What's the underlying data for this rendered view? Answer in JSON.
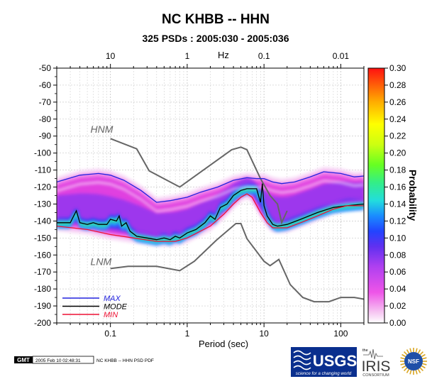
{
  "chart_data": {
    "type": "heatmap",
    "title": "NC KHBB -- HHN",
    "subtitle": "325 PSDs : 2005:030 - 2005:036",
    "xlabel": "Period (sec)",
    "top_axis_label": "Hz",
    "colorbar_label": "Probability",
    "x_scale": "log",
    "xlim": [
      0.02,
      200
    ],
    "ylim": [
      -200,
      -50
    ],
    "x_ticks": [
      {
        "value": 0.1,
        "label": "0.1"
      },
      {
        "value": 1,
        "label": "1"
      },
      {
        "value": 10,
        "label": "10"
      },
      {
        "value": 100,
        "label": "100"
      }
    ],
    "top_ticks": [
      {
        "value": 0.1,
        "label": "10"
      },
      {
        "value": 1,
        "label": "1"
      },
      {
        "value": 10,
        "label": "0.1"
      },
      {
        "value": 100,
        "label": "0.01"
      }
    ],
    "y_ticks": [
      {
        "value": -50,
        "label": "-50"
      },
      {
        "value": -60,
        "label": "-60"
      },
      {
        "value": -70,
        "label": "-70"
      },
      {
        "value": -80,
        "label": "-80"
      },
      {
        "value": -90,
        "label": "-90"
      },
      {
        "value": -100,
        "label": "-100"
      },
      {
        "value": -110,
        "label": "-110"
      },
      {
        "value": -120,
        "label": "-120"
      },
      {
        "value": -130,
        "label": "-130"
      },
      {
        "value": -140,
        "label": "-140"
      },
      {
        "value": -150,
        "label": "-150"
      },
      {
        "value": -160,
        "label": "-160"
      },
      {
        "value": -170,
        "label": "-170"
      },
      {
        "value": -180,
        "label": "-180"
      },
      {
        "value": -190,
        "label": "-190"
      },
      {
        "value": -200,
        "label": "-200"
      }
    ],
    "colorbar_ticks": [
      {
        "value": 0.0,
        "label": "0.00"
      },
      {
        "value": 0.02,
        "label": "0.02"
      },
      {
        "value": 0.04,
        "label": "0.04"
      },
      {
        "value": 0.06,
        "label": "0.06"
      },
      {
        "value": 0.08,
        "label": "0.08"
      },
      {
        "value": 0.1,
        "label": "0.10"
      },
      {
        "value": 0.12,
        "label": "0.12"
      },
      {
        "value": 0.14,
        "label": "0.14"
      },
      {
        "value": 0.16,
        "label": "0.16"
      },
      {
        "value": 0.18,
        "label": "0.18"
      },
      {
        "value": 0.2,
        "label": "0.20"
      },
      {
        "value": 0.22,
        "label": "0.22"
      },
      {
        "value": 0.24,
        "label": "0.24"
      },
      {
        "value": 0.26,
        "label": "0.26"
      },
      {
        "value": 0.28,
        "label": "0.28"
      },
      {
        "value": 0.3,
        "label": "0.30"
      }
    ],
    "colorbar_range": [
      0.0,
      0.3
    ],
    "colors": {
      "max": "#2222dd",
      "mode": "#000000",
      "min": "#ee1133",
      "model": "#666666",
      "grid": "#c8c8c8"
    },
    "model_labels": [
      {
        "text": "HNM",
        "x": 0.055,
        "y": -88
      },
      {
        "text": "LNM",
        "x": 0.055,
        "y": -166
      }
    ],
    "series": [
      {
        "name": "MAX",
        "key": "max",
        "points": [
          [
            0.02,
            -117
          ],
          [
            0.04,
            -113
          ],
          [
            0.07,
            -112
          ],
          [
            0.1,
            -113
          ],
          [
            0.15,
            -116
          ],
          [
            0.25,
            -122
          ],
          [
            0.4,
            -129
          ],
          [
            0.6,
            -128
          ],
          [
            1,
            -126
          ],
          [
            1.5,
            -123
          ],
          [
            2.5,
            -120
          ],
          [
            4,
            -116
          ],
          [
            6,
            -114.5
          ],
          [
            8,
            -115
          ],
          [
            10,
            -115
          ],
          [
            13,
            -117
          ],
          [
            17,
            -118
          ],
          [
            25,
            -117
          ],
          [
            40,
            -114
          ],
          [
            60,
            -111
          ],
          [
            100,
            -112
          ],
          [
            150,
            -114
          ],
          [
            200,
            -113.5
          ]
        ]
      },
      {
        "name": "MODE",
        "key": "mode",
        "points": [
          [
            0.02,
            -141
          ],
          [
            0.03,
            -141
          ],
          [
            0.036,
            -134
          ],
          [
            0.04,
            -141
          ],
          [
            0.05,
            -142
          ],
          [
            0.06,
            -141
          ],
          [
            0.07,
            -142
          ],
          [
            0.09,
            -142
          ],
          [
            0.1,
            -139
          ],
          [
            0.12,
            -140
          ],
          [
            0.13,
            -137
          ],
          [
            0.14,
            -143
          ],
          [
            0.16,
            -141
          ],
          [
            0.18,
            -146
          ],
          [
            0.22,
            -149
          ],
          [
            0.3,
            -150
          ],
          [
            0.4,
            -151
          ],
          [
            0.5,
            -150
          ],
          [
            0.6,
            -151
          ],
          [
            0.7,
            -149
          ],
          [
            0.8,
            -150
          ],
          [
            1,
            -147
          ],
          [
            1.3,
            -145
          ],
          [
            1.7,
            -141
          ],
          [
            2,
            -137
          ],
          [
            2.3,
            -139
          ],
          [
            2.7,
            -132
          ],
          [
            3.3,
            -130
          ],
          [
            4,
            -125
          ],
          [
            5,
            -122
          ],
          [
            6,
            -121
          ],
          [
            8,
            -121
          ],
          [
            9,
            -129
          ],
          [
            9.5,
            -118
          ],
          [
            10,
            -131
          ],
          [
            11,
            -137
          ],
          [
            13,
            -142
          ],
          [
            15,
            -143
          ],
          [
            20,
            -142
          ],
          [
            30,
            -139
          ],
          [
            50,
            -135
          ],
          [
            80,
            -132
          ],
          [
            120,
            -131
          ],
          [
            200,
            -130
          ]
        ]
      },
      {
        "name": "MIN",
        "key": "min",
        "points": [
          [
            0.02,
            -143
          ],
          [
            0.05,
            -145
          ],
          [
            0.1,
            -148
          ],
          [
            0.2,
            -150
          ],
          [
            0.4,
            -152
          ],
          [
            0.7,
            -152
          ],
          [
            1,
            -150
          ],
          [
            2,
            -143
          ],
          [
            3,
            -136
          ],
          [
            4,
            -130
          ],
          [
            5,
            -126
          ],
          [
            6,
            -124
          ],
          [
            7,
            -126
          ],
          [
            9,
            -135
          ],
          [
            11,
            -141
          ],
          [
            13,
            -144
          ],
          [
            20,
            -144
          ],
          [
            30,
            -141
          ],
          [
            50,
            -137
          ],
          [
            80,
            -133
          ],
          [
            120,
            -131
          ],
          [
            200,
            -131
          ]
        ]
      }
    ],
    "models": [
      {
        "key": "hnm",
        "points": [
          [
            0.1,
            -91.5
          ],
          [
            0.22,
            -97.5
          ],
          [
            0.32,
            -110.5
          ],
          [
            0.8,
            -120
          ],
          [
            3.8,
            -98
          ],
          [
            5,
            -96.5
          ],
          [
            6,
            -98
          ],
          [
            9,
            -115
          ],
          [
            12,
            -125
          ],
          [
            15,
            -130
          ],
          [
            17,
            -141
          ],
          [
            20,
            -134
          ]
        ]
      },
      {
        "key": "lnm",
        "points": [
          [
            0.1,
            -168
          ],
          [
            0.17,
            -166.7
          ],
          [
            0.4,
            -166.7
          ],
          [
            0.8,
            -169.2
          ],
          [
            1.24,
            -163.7
          ],
          [
            2.4,
            -151.3
          ],
          [
            4.3,
            -141.5
          ],
          [
            5.0,
            -141.5
          ],
          [
            6.0,
            -150.4
          ],
          [
            10,
            -163.7
          ],
          [
            12,
            -166.3
          ],
          [
            15.6,
            -162.6
          ],
          [
            22,
            -177.5
          ],
          [
            32,
            -185
          ],
          [
            45,
            -187.5
          ],
          [
            70,
            -187.5
          ],
          [
            100,
            -185
          ],
          [
            150,
            -185
          ],
          [
            200,
            -186
          ]
        ]
      }
    ],
    "legend": [
      {
        "label": "MAX",
        "key": "max"
      },
      {
        "label": "MODE",
        "key": "mode"
      },
      {
        "label": "MIN",
        "key": "min"
      }
    ],
    "legend_placement": "bottom-left"
  },
  "footer": {
    "gmt_logo": "GMT",
    "timestamp": "2005 Feb 10 02:48:31",
    "caption": "NC KHBB -- HHN PSD PDF",
    "usgs_tagline": "science for a changing world",
    "usgs_logo": "USGS",
    "iris_small": "the",
    "iris_logo": "IRIS",
    "iris_sub": "CONSORTIUM",
    "nsf_logo": "NSF"
  }
}
